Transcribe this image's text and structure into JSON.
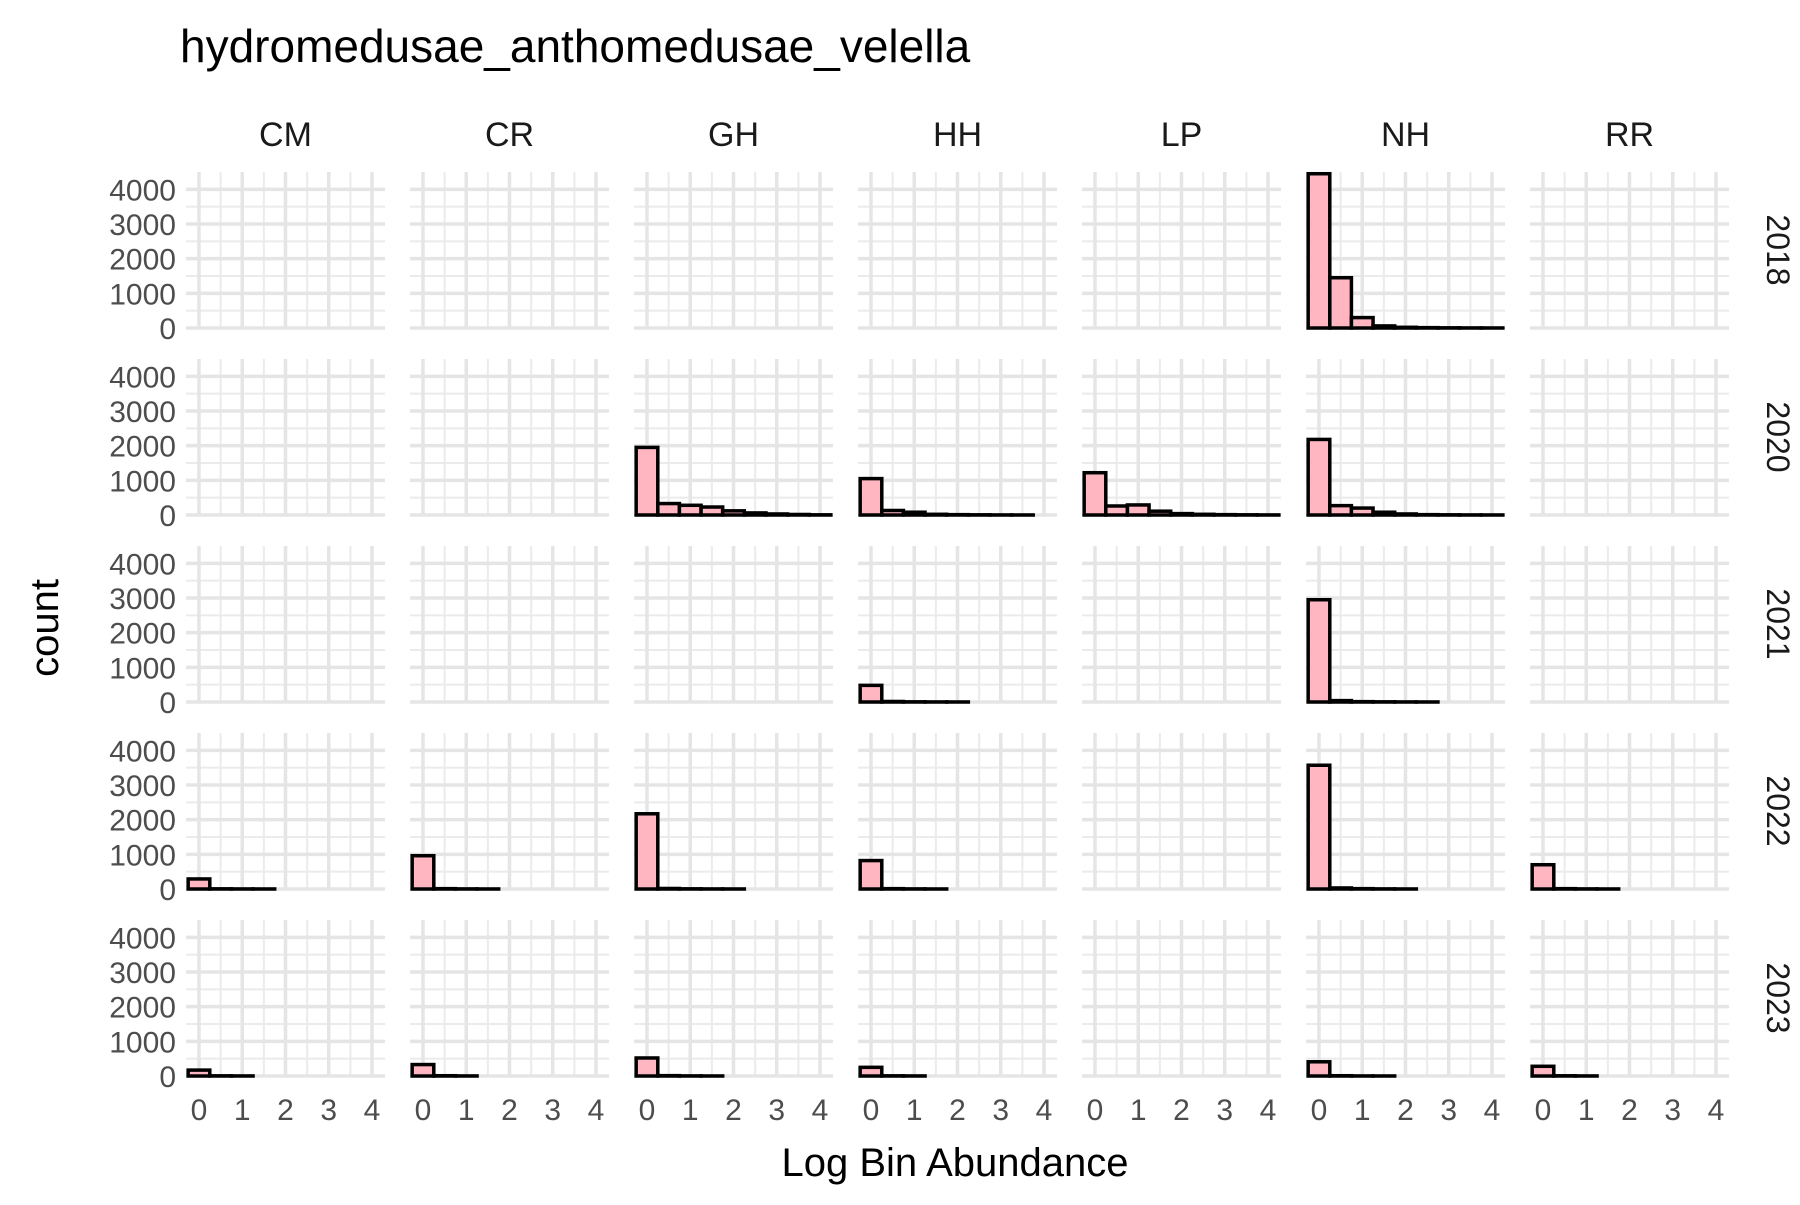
{
  "chart_data": {
    "type": "bar",
    "title": "hydromedusae_anthomedusae_velella",
    "xlabel": "Log Bin Abundance",
    "ylabel": "count",
    "columns": [
      "CM",
      "CR",
      "GH",
      "HH",
      "LP",
      "NH",
      "RR"
    ],
    "rows": [
      "2018",
      "2020",
      "2021",
      "2022",
      "2023"
    ],
    "x_ticks": [
      "0",
      "1",
      "2",
      "3",
      "4"
    ],
    "y_ticks": [
      "0",
      "1000",
      "2000",
      "3000",
      "4000"
    ],
    "xlim": [
      -0.3,
      4.3
    ],
    "ylim": [
      0,
      4500
    ],
    "bin_centers": [
      0,
      0.5,
      1,
      1.5,
      2,
      2.5,
      3,
      3.5,
      4
    ],
    "bar_fill": "#ffb6c1",
    "bar_stroke": "#000000",
    "grid": true,
    "panels": [
      {
        "row": "2018",
        "col": "NH",
        "values": [
          4450,
          1450,
          300,
          60,
          20,
          10,
          5,
          2,
          1
        ]
      },
      {
        "row": "2020",
        "col": "GH",
        "values": [
          1950,
          330,
          280,
          230,
          120,
          60,
          30,
          15,
          5
        ]
      },
      {
        "row": "2020",
        "col": "HH",
        "values": [
          1050,
          130,
          80,
          20,
          10,
          5,
          2,
          1,
          0
        ]
      },
      {
        "row": "2020",
        "col": "LP",
        "values": [
          1220,
          260,
          290,
          110,
          40,
          20,
          10,
          5,
          2
        ]
      },
      {
        "row": "2020",
        "col": "NH",
        "values": [
          2180,
          270,
          200,
          80,
          30,
          10,
          5,
          2,
          1
        ]
      },
      {
        "row": "2021",
        "col": "HH",
        "values": [
          480,
          15,
          5,
          2,
          1,
          0,
          0,
          0,
          0
        ]
      },
      {
        "row": "2021",
        "col": "NH",
        "values": [
          2950,
          40,
          10,
          5,
          2,
          1,
          0,
          0,
          0
        ]
      },
      {
        "row": "2022",
        "col": "CM",
        "values": [
          290,
          5,
          2,
          1,
          0,
          0,
          0,
          0,
          0
        ]
      },
      {
        "row": "2022",
        "col": "CR",
        "values": [
          960,
          10,
          3,
          1,
          0,
          0,
          0,
          0,
          0
        ]
      },
      {
        "row": "2022",
        "col": "GH",
        "values": [
          2170,
          15,
          5,
          2,
          1,
          0,
          0,
          0,
          0
        ]
      },
      {
        "row": "2022",
        "col": "HH",
        "values": [
          820,
          10,
          3,
          1,
          0,
          0,
          0,
          0,
          0
        ]
      },
      {
        "row": "2022",
        "col": "NH",
        "values": [
          3570,
          30,
          10,
          3,
          1,
          0,
          0,
          0,
          0
        ]
      },
      {
        "row": "2022",
        "col": "RR",
        "values": [
          700,
          10,
          3,
          1,
          0,
          0,
          0,
          0,
          0
        ]
      },
      {
        "row": "2023",
        "col": "CM",
        "values": [
          170,
          5,
          2,
          0,
          0,
          0,
          0,
          0,
          0
        ]
      },
      {
        "row": "2023",
        "col": "CR",
        "values": [
          330,
          8,
          2,
          0,
          0,
          0,
          0,
          0,
          0
        ]
      },
      {
        "row": "2023",
        "col": "GH",
        "values": [
          520,
          10,
          3,
          1,
          0,
          0,
          0,
          0,
          0
        ]
      },
      {
        "row": "2023",
        "col": "HH",
        "values": [
          250,
          5,
          2,
          0,
          0,
          0,
          0,
          0,
          0
        ]
      },
      {
        "row": "2023",
        "col": "NH",
        "values": [
          410,
          8,
          2,
          1,
          0,
          0,
          0,
          0,
          0
        ]
      },
      {
        "row": "2023",
        "col": "RR",
        "values": [
          280,
          6,
          2,
          0,
          0,
          0,
          0,
          0,
          0
        ]
      }
    ]
  }
}
